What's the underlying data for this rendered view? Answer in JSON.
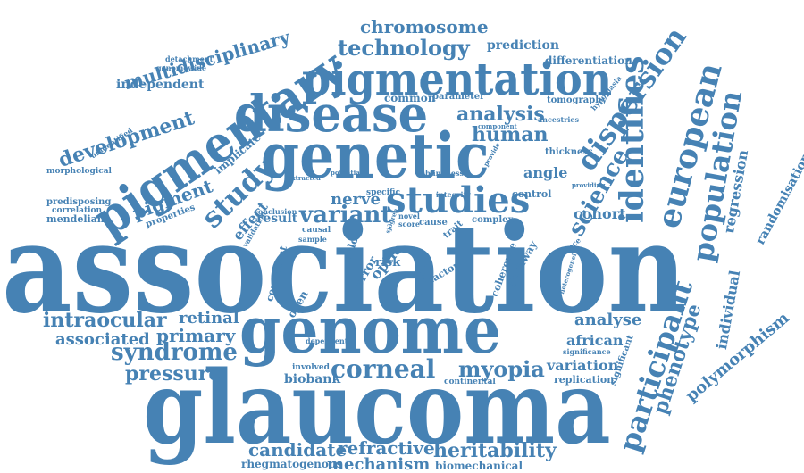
{
  "accent_color": "#4682b4",
  "background_color": "#ffffff",
  "words": [
    "association",
    "glaucoma",
    "genome",
    "genetic",
    "disease",
    "pigmentary",
    "pigmentation",
    "studies",
    "identifies",
    "european",
    "participant",
    "population",
    "dispersion",
    "corneal",
    "myopia",
    "heritability",
    "technology",
    "chromosome",
    "multidisciplinary",
    "development",
    "study",
    "pigment",
    "analysis",
    "human",
    "science",
    "variant",
    "nerve",
    "syndrome",
    "pressure",
    "intraocular",
    "associated",
    "primary",
    "retinal",
    "candidate",
    "refractive",
    "mechanism",
    "rhegmatogenous",
    "biomechanical",
    "biobank",
    "analyse",
    "african",
    "variation",
    "replication",
    "phenotype",
    "polymorphism",
    "individual",
    "regression",
    "randomisation",
    "cohort",
    "angle",
    "independent",
    "genomewide",
    "detachment",
    "prediction",
    "differentiation",
    "common",
    "parameter",
    "tomography",
    "mendelian",
    "predisposing",
    "correlation",
    "morphological",
    "unidentified",
    "properties",
    "effect",
    "result",
    "implicate",
    "optic",
    "risk",
    "error",
    "meta",
    "factor",
    "color",
    "open",
    "consistent",
    "dependent",
    "involved",
    "continental",
    "significance",
    "significant",
    "pathway",
    "coherence",
    "evidence",
    "heterogeneity",
    "thickness",
    "control",
    "complex",
    "cause",
    "novel",
    "score",
    "trait",
    "specific",
    "integrity",
    "blindness",
    "conclusion",
    "causal",
    "sample",
    "ancestries",
    "component",
    "extracted",
    "potential",
    "provide",
    "providing",
    "hypoplasia",
    "sjögren",
    "validation"
  ]
}
